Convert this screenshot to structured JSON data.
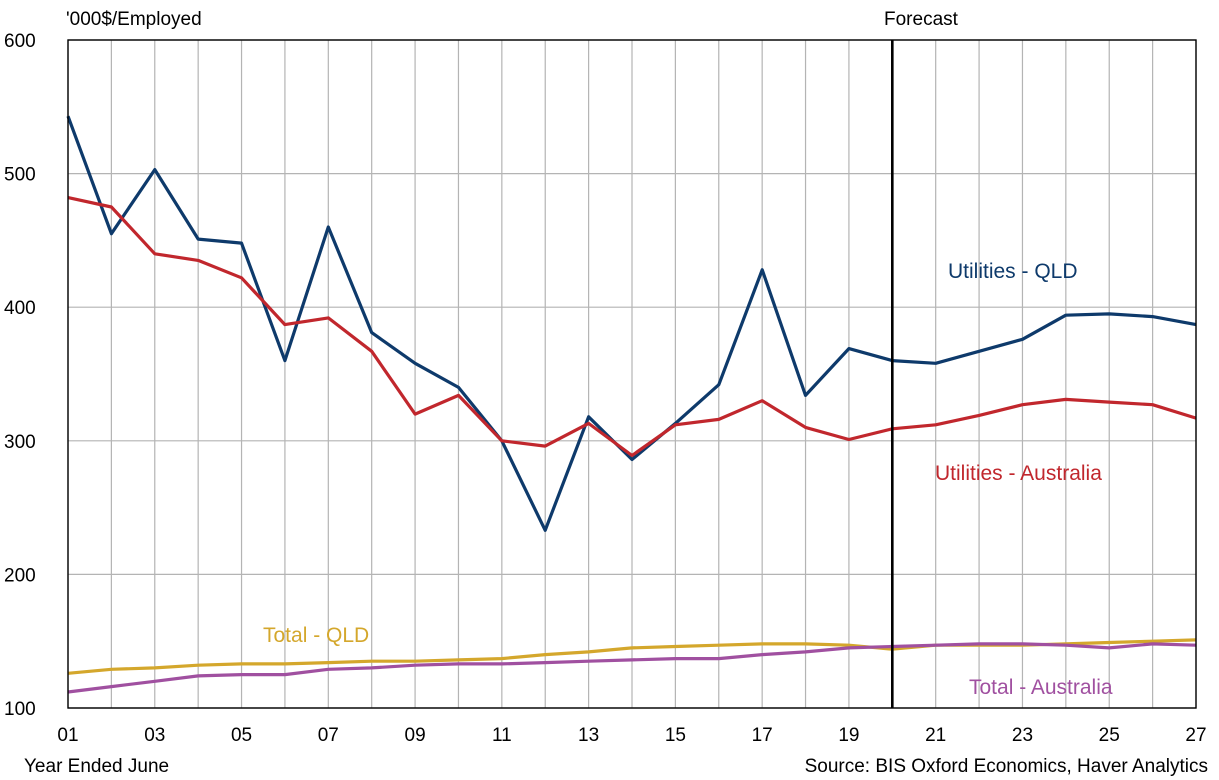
{
  "chart_data": {
    "type": "line",
    "ylabel": "'000$/Employed",
    "xlabel": "Year Ended June",
    "source": "Source: BIS Oxford Economics, Haver Analytics",
    "forecast_label": "Forecast",
    "forecast_start": "20",
    "ylim": [
      100,
      600
    ],
    "yticks": [
      "100",
      "200",
      "300",
      "400",
      "500",
      "600"
    ],
    "x": [
      "01",
      "02",
      "03",
      "04",
      "05",
      "06",
      "07",
      "08",
      "09",
      "10",
      "11",
      "12",
      "13",
      "14",
      "15",
      "16",
      "17",
      "18",
      "19",
      "20",
      "21",
      "22",
      "23",
      "24",
      "25",
      "26",
      "27"
    ],
    "xtick_labels": [
      "01",
      "03",
      "05",
      "07",
      "09",
      "11",
      "13",
      "15",
      "17",
      "19",
      "21",
      "23",
      "25",
      "27"
    ],
    "grid": true,
    "series": [
      {
        "name": "Utilities - QLD",
        "color": "#0e3a6b",
        "values": [
          543,
          455,
          503,
          451,
          448,
          360,
          460,
          381,
          358,
          340,
          300,
          233,
          318,
          286,
          313,
          342,
          428,
          334,
          369,
          360,
          358,
          367,
          376,
          394,
          395,
          393,
          387
        ]
      },
      {
        "name": "Utilities - Australia",
        "color": "#c1272d",
        "values": [
          482,
          475,
          440,
          435,
          422,
          387,
          392,
          367,
          320,
          334,
          300,
          296,
          313,
          289,
          312,
          316,
          330,
          310,
          301,
          309,
          312,
          319,
          327,
          331,
          329,
          327,
          317
        ]
      },
      {
        "name": "Total - QLD",
        "color": "#d4a72c",
        "values": [
          126,
          129,
          130,
          132,
          133,
          133,
          134,
          135,
          135,
          136,
          137,
          140,
          142,
          145,
          146,
          147,
          148,
          148,
          147,
          144,
          147,
          147,
          147,
          148,
          149,
          150,
          151
        ]
      },
      {
        "name": "Total - Australia",
        "color": "#a050a0",
        "values": [
          112,
          116,
          120,
          124,
          125,
          125,
          129,
          130,
          132,
          133,
          133,
          134,
          135,
          136,
          137,
          137,
          140,
          142,
          145,
          146,
          147,
          148,
          148,
          147,
          145,
          148,
          147
        ]
      }
    ]
  }
}
